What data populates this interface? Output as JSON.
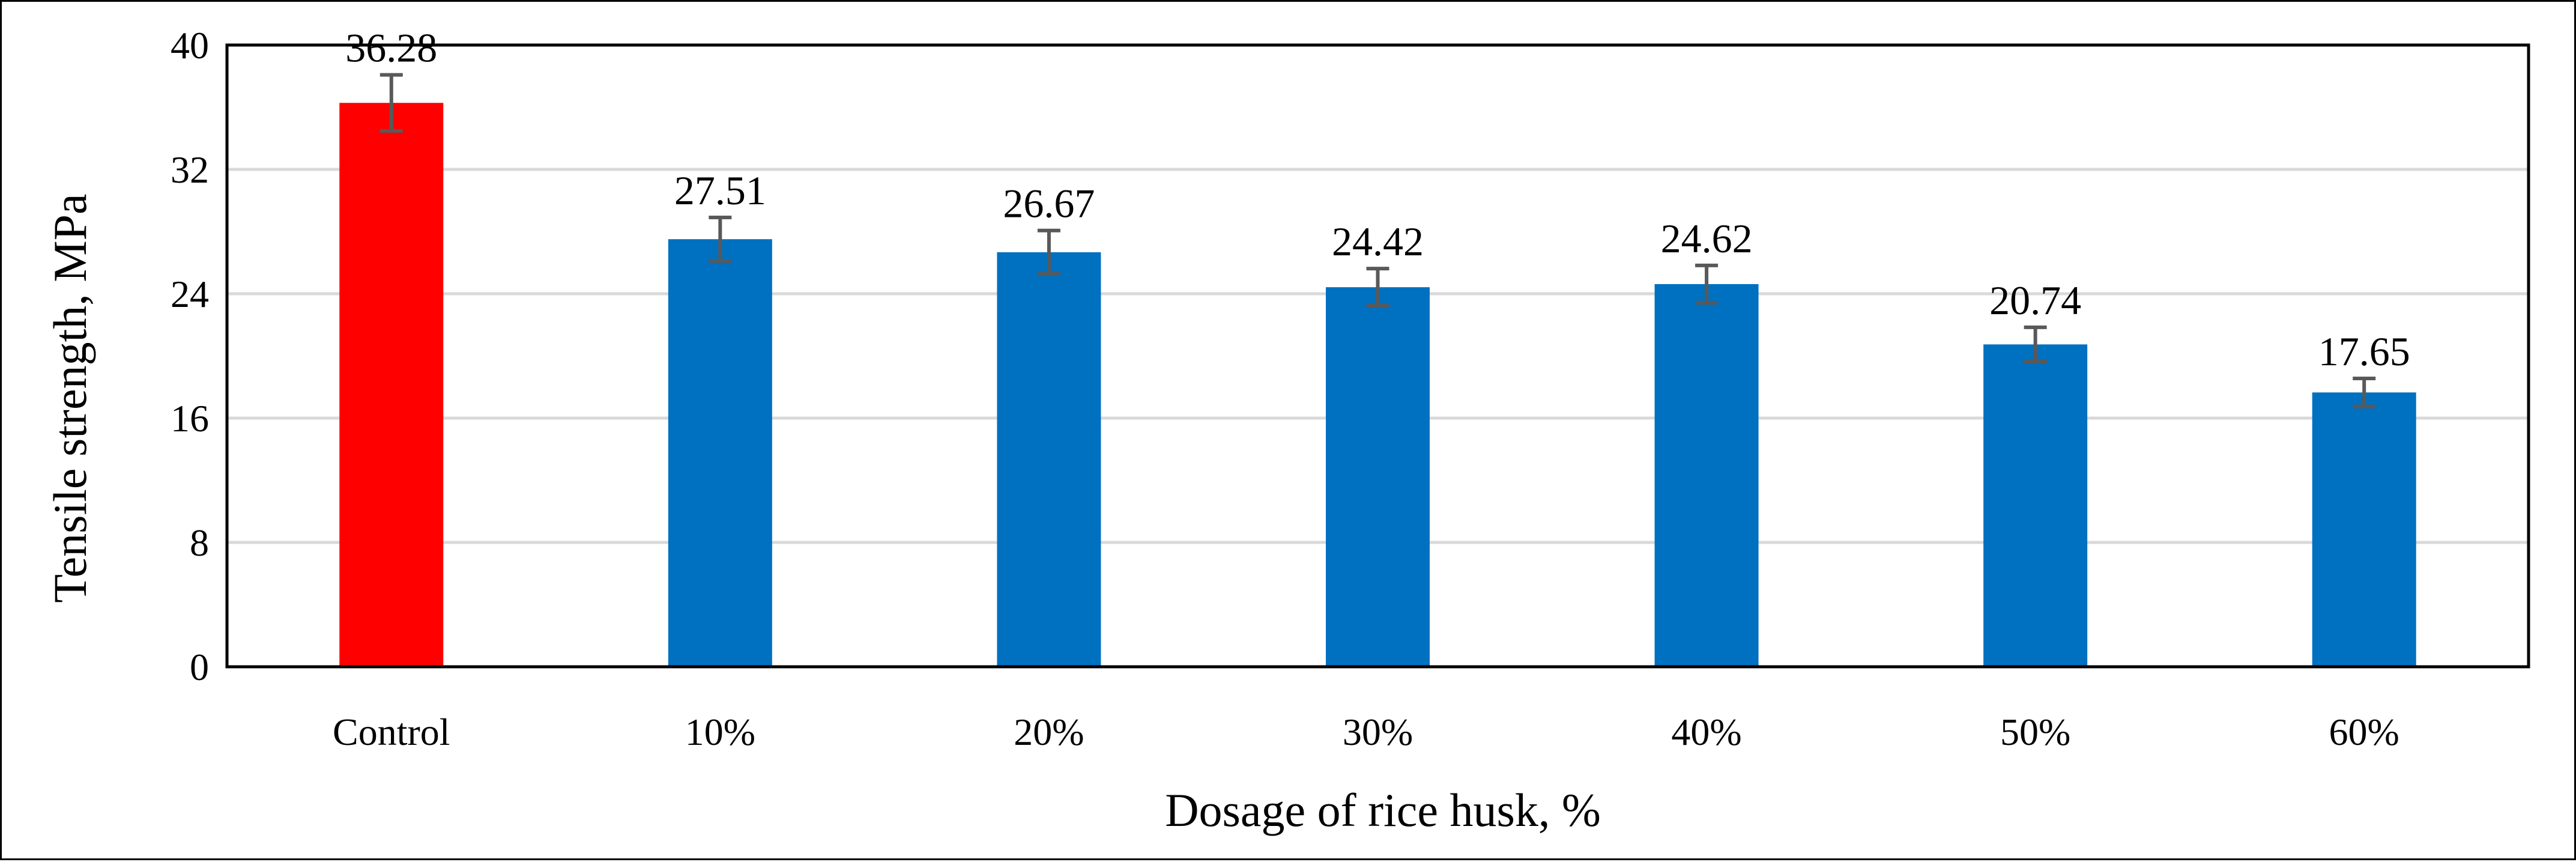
{
  "chart_data": {
    "type": "bar",
    "title": "",
    "xlabel": "Dosage of rice husk, %",
    "ylabel": "Tensile strength, MPa",
    "categories": [
      "Control",
      "10%",
      "20%",
      "30%",
      "40%",
      "50%",
      "60%"
    ],
    "values": [
      36.28,
      27.51,
      26.67,
      24.42,
      24.62,
      20.74,
      17.65
    ],
    "value_labels": [
      "36.28",
      "27.51",
      "26.67",
      "24.42",
      "24.62",
      "20.74",
      "17.65"
    ],
    "error": [
      1.8,
      1.4,
      1.4,
      1.2,
      1.2,
      1.1,
      0.9
    ],
    "ylim": [
      0,
      40
    ],
    "yticks": [
      0,
      8,
      16,
      24,
      32,
      40
    ],
    "ytick_labels": [
      "0",
      "8",
      "16",
      "24",
      "32",
      "40"
    ],
    "grid": true,
    "legend": "none",
    "colors": {
      "control_bar": "#FF0000",
      "bar": "#0070C0",
      "error_bar": "#595959",
      "gridline": "#D9D9D9",
      "axis": "#000000"
    }
  }
}
